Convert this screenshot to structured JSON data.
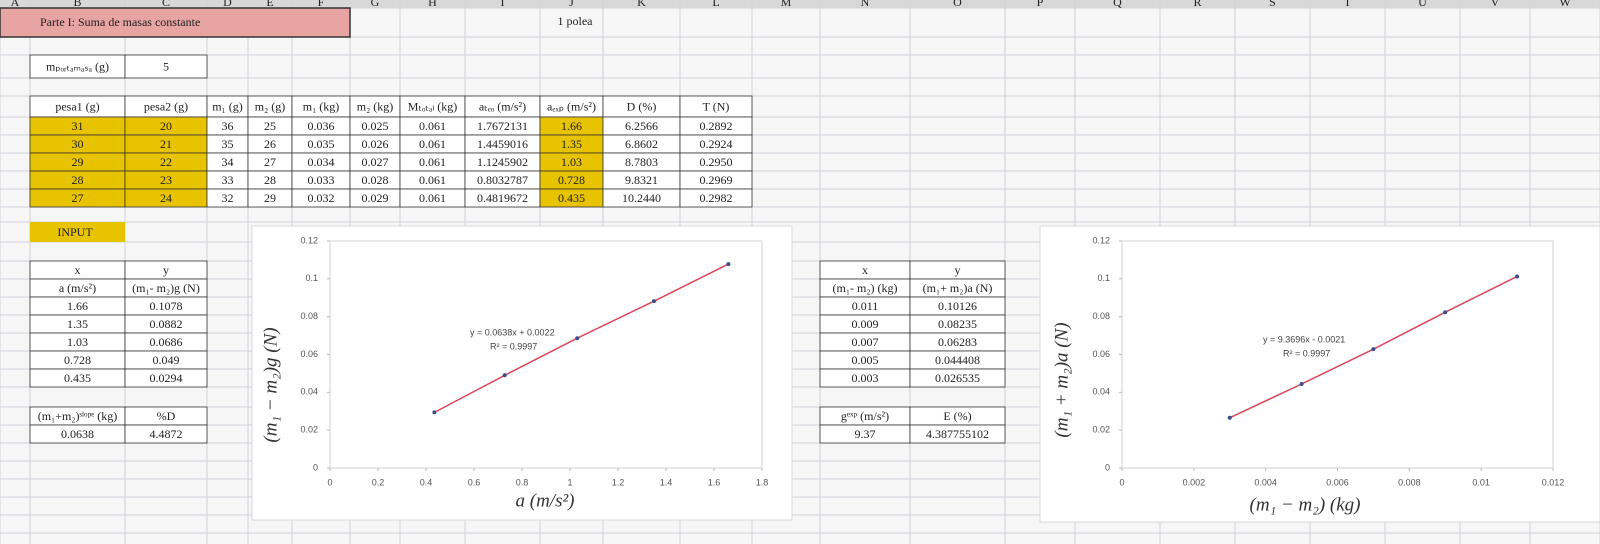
{
  "column_headers": [
    "A",
    "B",
    "C",
    "D",
    "E",
    "F",
    "G",
    "H",
    "I",
    "J",
    "K",
    "L",
    "M",
    "N",
    "O",
    "P",
    "Q",
    "R",
    "S",
    "T",
    "U",
    "V",
    "W"
  ],
  "title": "Parte I: Suma de masas constante",
  "subtitle": "1 polea",
  "mass": {
    "label": "mₚₒᵣₜₐₘₐₛₐ (g)",
    "value": "5"
  },
  "table": {
    "headers": [
      "pesa1 (g)",
      "pesa2 (g)",
      "m₁ (g)",
      "m₂ (g)",
      "m₁ (kg)",
      "m₂ (kg)",
      "Mₜₒₜₐₗ (kg)",
      "aₜₑₒ (m/s²)",
      "aₑₓₚ (m/s²)",
      "D (%)",
      "T (N)"
    ],
    "rows": [
      [
        "31",
        "20",
        "36",
        "25",
        "0.036",
        "0.025",
        "0.061",
        "1.7672131",
        "1.66",
        "6.2566",
        "0.2892"
      ],
      [
        "30",
        "21",
        "35",
        "26",
        "0.035",
        "0.026",
        "0.061",
        "1.4459016",
        "1.35",
        "6.8602",
        "0.2924"
      ],
      [
        "29",
        "22",
        "34",
        "27",
        "0.034",
        "0.027",
        "0.061",
        "1.1245902",
        "1.03",
        "8.7803",
        "0.2950"
      ],
      [
        "28",
        "23",
        "33",
        "28",
        "0.033",
        "0.028",
        "0.061",
        "0.8032787",
        "0.728",
        "9.8321",
        "0.2969"
      ],
      [
        "27",
        "24",
        "32",
        "29",
        "0.032",
        "0.029",
        "0.061",
        "0.4819672",
        "0.435",
        "10.2440",
        "0.2982"
      ]
    ]
  },
  "input_label": "INPUT",
  "input_table": {
    "headers": [
      "x",
      "y"
    ],
    "units": [
      "a (m/s²)",
      "(m₁- m₂)g (N)"
    ],
    "rows": [
      [
        "1.66",
        "0.1078"
      ],
      [
        "1.35",
        "0.0882"
      ],
      [
        "1.03",
        "0.0686"
      ],
      [
        "0.728",
        "0.049"
      ],
      [
        "0.435",
        "0.0294"
      ]
    ]
  },
  "slope_table": {
    "headers": [
      "(m₁+m₂)ˢˡᵒᵖᵉ (kg)",
      "%D"
    ],
    "rows": [
      [
        "0.0638",
        "4.4872"
      ]
    ]
  },
  "output_table": {
    "headers": [
      "x",
      "y"
    ],
    "units": [
      "(m₁- m₂) (kg)",
      "(m₁+ m₂)a (N)"
    ],
    "rows": [
      [
        "0.011",
        "0.10126"
      ],
      [
        "0.009",
        "0.08235"
      ],
      [
        "0.007",
        "0.06283"
      ],
      [
        "0.005",
        "0.044408"
      ],
      [
        "0.003",
        "0.026535"
      ]
    ]
  },
  "g_table": {
    "headers": [
      "gᵉˣᵖ (m/s²)",
      "E (%)"
    ],
    "rows": [
      [
        "9.37",
        "4.387755102"
      ]
    ]
  },
  "chart_data": [
    {
      "type": "scatter",
      "x": [
        1.66,
        1.35,
        1.03,
        0.728,
        0.435
      ],
      "values": [
        0.1078,
        0.0882,
        0.0686,
        0.049,
        0.0294
      ],
      "xlim": [
        0,
        1.8
      ],
      "xticks": [
        0,
        0.2,
        0.4,
        0.6,
        0.8,
        1,
        1.2,
        1.4,
        1.6,
        1.8
      ],
      "ylim": [
        0,
        0.12
      ],
      "yticks": [
        0,
        0.02,
        0.04,
        0.06,
        0.08,
        0.1,
        0.12
      ],
      "xlabel": "a (m/s²)",
      "ylabel": "(m₁ − m₂)g (N)",
      "annotations": [
        "y = 0.0638x + 0.0022",
        "R² = 0.9997"
      ],
      "color": "#d9485a",
      "marker_color": "#3a4f8a",
      "trendline": true
    },
    {
      "type": "scatter",
      "x": [
        0.011,
        0.009,
        0.007,
        0.005,
        0.003
      ],
      "values": [
        0.10126,
        0.08235,
        0.06283,
        0.044408,
        0.026535
      ],
      "xlim": [
        0,
        0.012
      ],
      "xticks": [
        0,
        0.002,
        0.004,
        0.006,
        0.008,
        0.01,
        0.012
      ],
      "ylim": [
        0,
        0.12
      ],
      "yticks": [
        0,
        0.02,
        0.04,
        0.06,
        0.08,
        0.1,
        0.12
      ],
      "xlabel": "(m₁ − m₂) (kg)",
      "ylabel": "(m₁ + m₂)a (N)",
      "annotations": [
        "y = 9.3696x - 0.0021",
        "R² = 0.9997"
      ],
      "color": "#d9485a",
      "marker_color": "#3a4f8a",
      "trendline": true
    }
  ]
}
